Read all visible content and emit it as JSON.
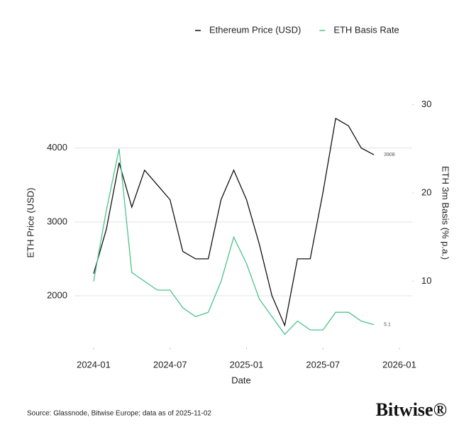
{
  "chart_data": {
    "type": "line",
    "x_label": "Date",
    "y_label": "ETH Price (USD)",
    "y2_label": "ETH 3m Basis (% p.a.)",
    "source": "Source: Glassnode, Bitwise Europe; data as of 2025-11-02",
    "logo": "Bitwise®",
    "x": [
      "2024-01",
      "2024-02",
      "2024-03",
      "2024-04",
      "2024-05",
      "2024-06",
      "2024-07",
      "2024-08",
      "2024-09",
      "2024-10",
      "2024-11",
      "2024-12",
      "2025-01",
      "2025-02",
      "2025-03",
      "2025-04",
      "2025-05",
      "2025-06",
      "2025-07",
      "2025-08",
      "2025-09",
      "2025-10",
      "2025-11"
    ],
    "xlim": [
      "2023-12",
      "2026-02"
    ],
    "xticks": [
      "2024-01",
      "2024-07",
      "2025-01",
      "2025-07",
      "2026-01"
    ],
    "ylim": [
      1300,
      4850
    ],
    "yticks": [
      2000,
      3000,
      4000
    ],
    "y2lim": [
      2.5,
      32.2
    ],
    "y2ticks": [
      10,
      20,
      30
    ],
    "grid": true,
    "legend": "top",
    "series": [
      {
        "name": "Ethereum Price (USD)",
        "color": "#111111",
        "values": [
          2300,
          2900,
          3800,
          3200,
          3700,
          3500,
          3300,
          2600,
          2500,
          2500,
          3300,
          3700,
          3300,
          2700,
          2000,
          1600,
          2500,
          2500,
          3400,
          4400,
          4300,
          4000,
          3908
        ]
      },
      {
        "name": "ETH Basis Rate",
        "color": "#4cc38a",
        "axis": "y2",
        "values": [
          10,
          18,
          25,
          11,
          10,
          9,
          9,
          7,
          6,
          6.5,
          10,
          15,
          12,
          8,
          6,
          4,
          5.5,
          4.5,
          4.5,
          6.5,
          6.5,
          5.5,
          5.1
        ]
      }
    ]
  }
}
